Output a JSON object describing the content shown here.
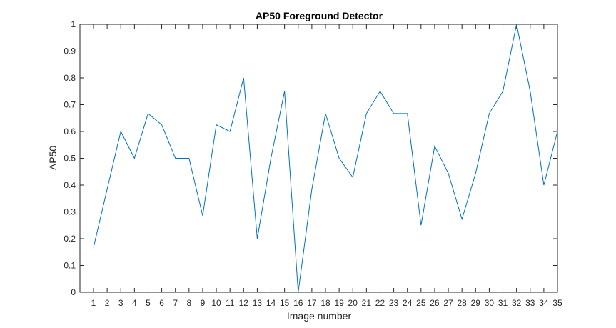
{
  "chart_data": {
    "type": "line",
    "title": "AP50 Foreground Detector",
    "xlabel": "Image number",
    "ylabel": "AP50",
    "xlim": [
      1,
      35
    ],
    "ylim": [
      0,
      1
    ],
    "grid": false,
    "x": [
      1,
      2,
      3,
      4,
      5,
      6,
      7,
      8,
      9,
      10,
      11,
      12,
      13,
      14,
      15,
      16,
      17,
      18,
      19,
      20,
      21,
      22,
      23,
      24,
      25,
      26,
      27,
      28,
      29,
      30,
      31,
      32,
      33,
      34,
      35
    ],
    "x_tick_labels": [
      "1",
      "2",
      "3",
      "4",
      "5",
      "6",
      "7",
      "8",
      "9",
      "10",
      "11",
      "12",
      "13",
      "14",
      "15",
      "16",
      "17",
      "18",
      "19",
      "20",
      "21",
      "22",
      "23",
      "24",
      "25",
      "26",
      "27",
      "28",
      "29",
      "30",
      "31",
      "32",
      "33",
      "34",
      "35"
    ],
    "y_tick_labels": [
      "0",
      "0.1",
      "0.2",
      "0.3",
      "0.4",
      "0.5",
      "0.6",
      "0.7",
      "0.8",
      "0.9",
      "1"
    ],
    "y_ticks": [
      0,
      0.1,
      0.2,
      0.3,
      0.4,
      0.5,
      0.6,
      0.7,
      0.8,
      0.9,
      1
    ],
    "series": [
      {
        "color": "#0072bd",
        "values": [
          0.167,
          0.385,
          0.6,
          0.5,
          0.667,
          0.625,
          0.5,
          0.5,
          0.286,
          0.625,
          0.6,
          0.8,
          0.2,
          0.5,
          0.75,
          0.0,
          0.385,
          0.667,
          0.5,
          0.429,
          0.667,
          0.75,
          0.667,
          0.667,
          0.25,
          0.545,
          0.444,
          0.273,
          0.444,
          0.667,
          0.75,
          1.0,
          0.75,
          0.4,
          0.6
        ]
      }
    ]
  }
}
